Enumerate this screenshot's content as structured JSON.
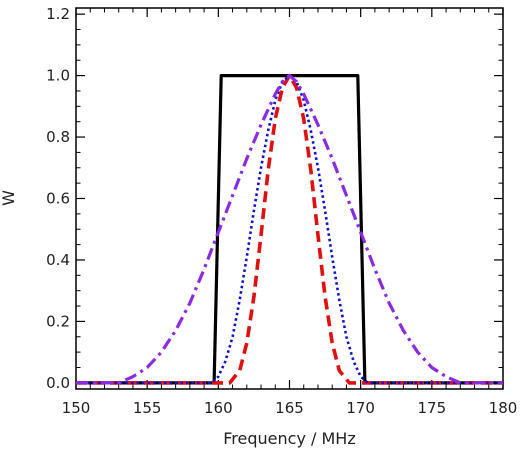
{
  "chart_data": {
    "type": "line",
    "title": "",
    "xlabel": "Frequency / MHz",
    "ylabel": "W",
    "xlim": [
      150,
      180
    ],
    "ylim": [
      -0.02,
      1.22
    ],
    "xticks": [
      150,
      155,
      160,
      165,
      170,
      175,
      180
    ],
    "yticks": [
      0.0,
      0.2,
      0.4,
      0.6,
      0.8,
      1.0,
      1.2
    ],
    "xtick_labels": [
      "150",
      "155",
      "160",
      "165",
      "170",
      "175",
      "180"
    ],
    "ytick_labels": [
      "0.0",
      "0.2",
      "0.4",
      "0.6",
      "0.8",
      "1.0",
      "1.2"
    ],
    "grid": false,
    "legend": "none",
    "series": [
      {
        "style": "solid",
        "color": "#000000",
        "points": [
          [
            150,
            0.0
          ],
          [
            159.7,
            0.0
          ],
          [
            160.2,
            1.0
          ],
          [
            169.8,
            1.0
          ],
          [
            170.3,
            0.0
          ],
          [
            180,
            0.0
          ]
        ]
      },
      {
        "style": "dashed",
        "color": "#e01010",
        "points": [
          [
            150,
            0.0
          ],
          [
            160.3,
            0.0
          ],
          [
            160.8,
            0.0
          ],
          [
            161.5,
            0.04
          ],
          [
            162.0,
            0.13
          ],
          [
            162.5,
            0.28
          ],
          [
            163.0,
            0.48
          ],
          [
            163.5,
            0.69
          ],
          [
            164.0,
            0.86
          ],
          [
            164.5,
            0.96
          ],
          [
            165.0,
            1.0
          ],
          [
            165.5,
            0.96
          ],
          [
            166.0,
            0.86
          ],
          [
            166.5,
            0.69
          ],
          [
            167.0,
            0.48
          ],
          [
            167.5,
            0.28
          ],
          [
            168.0,
            0.13
          ],
          [
            168.5,
            0.04
          ],
          [
            169.2,
            0.0
          ],
          [
            169.7,
            0.0
          ],
          [
            180,
            0.0
          ]
        ]
      },
      {
        "style": "dotted",
        "color": "#1010cc",
        "points": [
          [
            150,
            0.0
          ],
          [
            159.5,
            0.0
          ],
          [
            160.0,
            0.02
          ],
          [
            160.5,
            0.07
          ],
          [
            161.0,
            0.15
          ],
          [
            161.5,
            0.27
          ],
          [
            162.0,
            0.41
          ],
          [
            162.5,
            0.56
          ],
          [
            163.0,
            0.7
          ],
          [
            163.5,
            0.82
          ],
          [
            164.0,
            0.92
          ],
          [
            164.5,
            0.98
          ],
          [
            165.0,
            1.0
          ],
          [
            165.5,
            0.98
          ],
          [
            166.0,
            0.92
          ],
          [
            166.5,
            0.82
          ],
          [
            167.0,
            0.7
          ],
          [
            167.5,
            0.56
          ],
          [
            168.0,
            0.41
          ],
          [
            168.5,
            0.27
          ],
          [
            169.0,
            0.15
          ],
          [
            169.5,
            0.07
          ],
          [
            170.0,
            0.02
          ],
          [
            170.5,
            0.0
          ],
          [
            180,
            0.0
          ]
        ]
      },
      {
        "style": "dashdot",
        "color": "#8a2be2",
        "points": [
          [
            150,
            0.0
          ],
          [
            153.0,
            0.0
          ],
          [
            154.0,
            0.02
          ],
          [
            155.0,
            0.05
          ],
          [
            156.0,
            0.1
          ],
          [
            157.0,
            0.17
          ],
          [
            158.0,
            0.26
          ],
          [
            159.0,
            0.37
          ],
          [
            160.0,
            0.49
          ],
          [
            161.0,
            0.61
          ],
          [
            162.0,
            0.73
          ],
          [
            163.0,
            0.84
          ],
          [
            164.0,
            0.94
          ],
          [
            164.5,
            0.98
          ],
          [
            165.0,
            1.0
          ],
          [
            165.5,
            0.98
          ],
          [
            166.0,
            0.94
          ],
          [
            167.0,
            0.84
          ],
          [
            168.0,
            0.73
          ],
          [
            169.0,
            0.61
          ],
          [
            170.0,
            0.49
          ],
          [
            171.0,
            0.37
          ],
          [
            172.0,
            0.26
          ],
          [
            173.0,
            0.17
          ],
          [
            174.0,
            0.1
          ],
          [
            175.0,
            0.05
          ],
          [
            176.0,
            0.02
          ],
          [
            177.0,
            0.0
          ],
          [
            180,
            0.0
          ]
        ]
      }
    ]
  }
}
